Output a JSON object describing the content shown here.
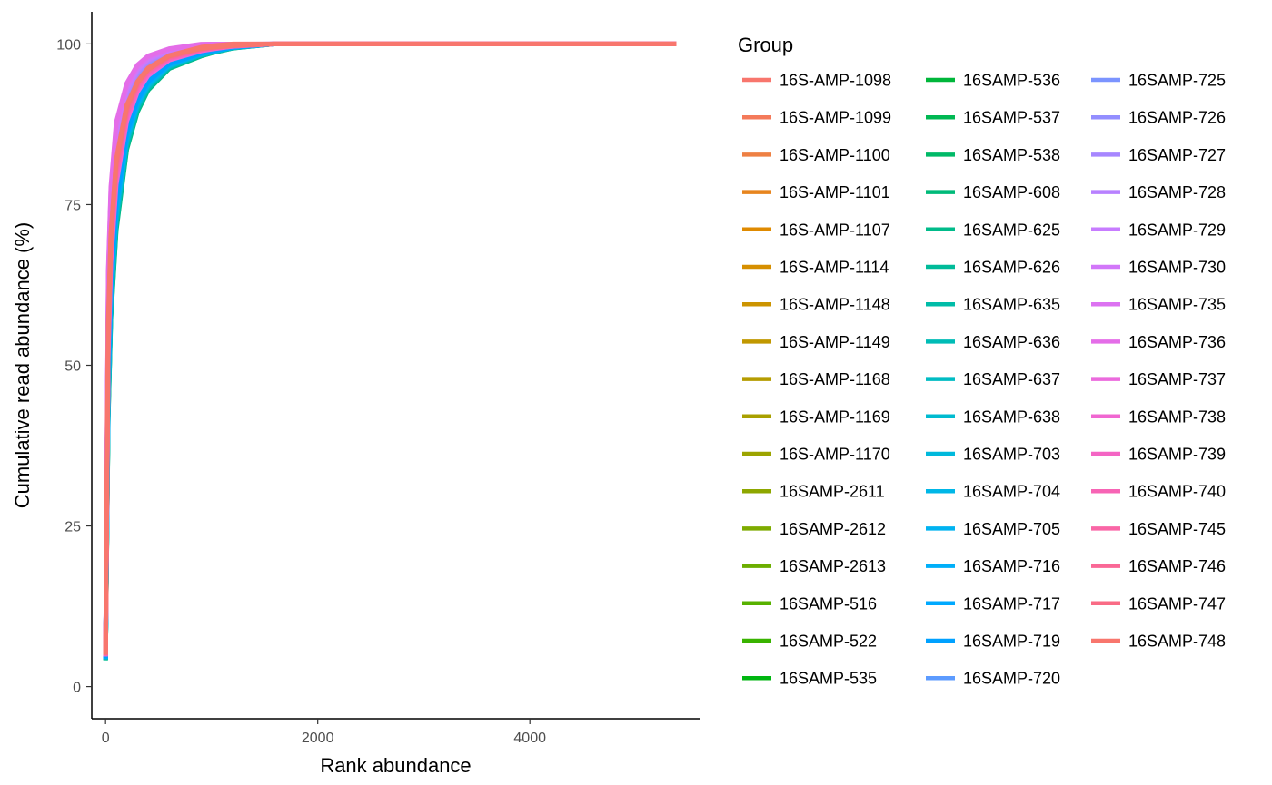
{
  "chart_data": {
    "type": "line",
    "title": "",
    "xlabel": "Rank abundance",
    "ylabel": "Cumulative read abundance (%)",
    "xlim": [
      -130,
      5600
    ],
    "ylim": [
      -5,
      105
    ],
    "x_ticks": [
      0,
      2000,
      4000
    ],
    "y_ticks": [
      0,
      25,
      50,
      75,
      100
    ],
    "grid": false,
    "legend": {
      "title": "Group",
      "position": "right",
      "columns": 3
    },
    "series": [
      {
        "name": "16S-AMP-1098",
        "color": "#F8766D"
      },
      {
        "name": "16S-AMP-1099",
        "color": "#F47A5A"
      },
      {
        "name": "16S-AMP-1100",
        "color": "#EE8043"
      },
      {
        "name": "16S-AMP-1101",
        "color": "#E7851E"
      },
      {
        "name": "16S-AMP-1107",
        "color": "#DF8A00"
      },
      {
        "name": "16S-AMP-1114",
        "color": "#D68F00"
      },
      {
        "name": "16S-AMP-1148",
        "color": "#CC9400"
      },
      {
        "name": "16S-AMP-1149",
        "color": "#C19800"
      },
      {
        "name": "16S-AMP-1168",
        "color": "#B59C00"
      },
      {
        "name": "16S-AMP-1169",
        "color": "#A9A000"
      },
      {
        "name": "16S-AMP-1170",
        "color": "#9CA400"
      },
      {
        "name": "16SAMP-2611",
        "color": "#8EA700"
      },
      {
        "name": "16SAMP-2612",
        "color": "#7EAB00"
      },
      {
        "name": "16SAMP-2613",
        "color": "#6CAE00"
      },
      {
        "name": "16SAMP-516",
        "color": "#57B100"
      },
      {
        "name": "16SAMP-522",
        "color": "#39B300"
      },
      {
        "name": "16SAMP-535",
        "color": "#00B611"
      },
      {
        "name": "16SAMP-536",
        "color": "#00B63A"
      },
      {
        "name": "16SAMP-537",
        "color": "#00B853"
      },
      {
        "name": "16SAMP-538",
        "color": "#00B967"
      },
      {
        "name": "16SAMP-608",
        "color": "#00BA79"
      },
      {
        "name": "16SAMP-625",
        "color": "#00BB8A"
      },
      {
        "name": "16SAMP-626",
        "color": "#00BB99"
      },
      {
        "name": "16SAMP-635",
        "color": "#00BCA8"
      },
      {
        "name": "16SAMP-636",
        "color": "#00BCB6"
      },
      {
        "name": "16SAMP-637",
        "color": "#00BCC3"
      },
      {
        "name": "16SAMP-638",
        "color": "#00BBD0"
      },
      {
        "name": "16SAMP-703",
        "color": "#00B9DC"
      },
      {
        "name": "16SAMP-704",
        "color": "#00B7E7"
      },
      {
        "name": "16SAMP-705",
        "color": "#00B3F1"
      },
      {
        "name": "16SAMP-716",
        "color": "#00AFF9"
      },
      {
        "name": "16SAMP-717",
        "color": "#00A9FF"
      },
      {
        "name": "16SAMP-719",
        "color": "#00A1FF"
      },
      {
        "name": "16SAMP-720",
        "color": "#5C9BFF"
      },
      {
        "name": "16SAMP-725",
        "color": "#7B94FF"
      },
      {
        "name": "16SAMP-726",
        "color": "#938EFF"
      },
      {
        "name": "16SAMP-727",
        "color": "#A787FF"
      },
      {
        "name": "16SAMP-728",
        "color": "#B881FF"
      },
      {
        "name": "16SAMP-729",
        "color": "#C77CFF"
      },
      {
        "name": "16SAMP-730",
        "color": "#D277F9"
      },
      {
        "name": "16SAMP-735",
        "color": "#DC72F1"
      },
      {
        "name": "16SAMP-736",
        "color": "#E46DE8"
      },
      {
        "name": "16SAMP-737",
        "color": "#EB6ADD"
      },
      {
        "name": "16SAMP-738",
        "color": "#F067D1"
      },
      {
        "name": "16SAMP-739",
        "color": "#F465C4"
      },
      {
        "name": "16SAMP-740",
        "color": "#F764B5"
      },
      {
        "name": "16SAMP-745",
        "color": "#F966A6"
      },
      {
        "name": "16SAMP-746",
        "color": "#FA6896"
      },
      {
        "name": "16SAMP-747",
        "color": "#F96B85"
      },
      {
        "name": "16SAMP-748",
        "color": "#F8766D"
      }
    ],
    "curve_envelope": {
      "note_free": true,
      "x": [
        0,
        25,
        50,
        100,
        200,
        300,
        400,
        600,
        900,
        1000,
        1200,
        1600,
        5380
      ],
      "upper": [
        5.5,
        65,
        78,
        88,
        94,
        96.8,
        98.2,
        99.3,
        100,
        100,
        100,
        100,
        100
      ],
      "lower": [
        4,
        40,
        56,
        70,
        83,
        89,
        92.5,
        96,
        98,
        98.5,
        99.3,
        100,
        100
      ],
      "mid": [
        5,
        55,
        70,
        82,
        90.5,
        94,
        96,
        98.2,
        99.5,
        99.7,
        100,
        100,
        100
      ]
    }
  }
}
